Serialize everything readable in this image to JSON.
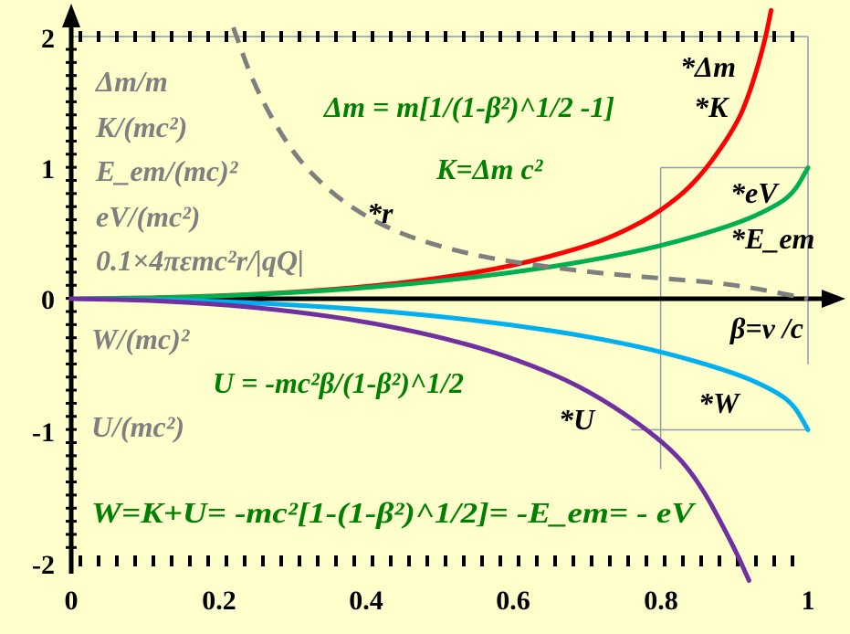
{
  "chart_data": {
    "type": "line",
    "xlim": [
      0,
      1
    ],
    "ylim": [
      -2,
      2
    ],
    "x_ticks": [
      "0",
      "0.2",
      "0.4",
      "0.6",
      "0.8",
      "1"
    ],
    "y_ticks": [
      "2",
      "1",
      "0",
      "-1",
      "-2"
    ],
    "x_axis_label": "β=v /c",
    "grid": false,
    "reference_lines": [
      {
        "type": "h",
        "y": 1,
        "x_from": 0.8,
        "x_to": 1
      },
      {
        "type": "v",
        "x": 0.8,
        "y_from": -1.3,
        "y_to": 1
      },
      {
        "type": "h",
        "y": -1,
        "x_from": 0.76,
        "x_to": 1
      },
      {
        "type": "v",
        "x": 1,
        "y_from": -0.5,
        "y_to": 2
      }
    ],
    "series": [
      {
        "id": "dm",
        "label": "*Δm / *K",
        "color": "#ff0000",
        "dashed": false,
        "x": [
          0,
          0.1,
          0.2,
          0.3,
          0.4,
          0.5,
          0.6,
          0.7,
          0.75,
          0.8,
          0.85,
          0.9,
          0.92,
          0.94,
          0.95
        ],
        "y": [
          0,
          0.005,
          0.021,
          0.048,
          0.091,
          0.155,
          0.25,
          0.4,
          0.512,
          0.667,
          0.898,
          1.294,
          1.552,
          1.931,
          2.2
        ]
      },
      {
        "id": "ev",
        "label": "*eV / *E_em",
        "color": "#00b050",
        "dashed": false,
        "x": [
          0,
          0.1,
          0.2,
          0.3,
          0.4,
          0.5,
          0.6,
          0.7,
          0.8,
          0.9,
          0.95,
          0.98,
          1
        ],
        "y": [
          0,
          0.005,
          0.02,
          0.046,
          0.083,
          0.134,
          0.2,
          0.286,
          0.4,
          0.564,
          0.688,
          0.801,
          1
        ]
      },
      {
        "id": "w",
        "label": "*W",
        "color": "#00b0f0",
        "dashed": false,
        "x": [
          0,
          0.1,
          0.2,
          0.3,
          0.4,
          0.5,
          0.6,
          0.7,
          0.8,
          0.9,
          0.95,
          0.98,
          1
        ],
        "y": [
          0,
          -0.005,
          -0.02,
          -0.046,
          -0.083,
          -0.134,
          -0.2,
          -0.286,
          -0.4,
          -0.564,
          -0.688,
          -0.801,
          -1
        ]
      },
      {
        "id": "u",
        "label": "*U",
        "color": "#7030a0",
        "dashed": false,
        "x": [
          0,
          0.1,
          0.2,
          0.3,
          0.4,
          0.5,
          0.6,
          0.7,
          0.8,
          0.85,
          0.9,
          0.92
        ],
        "y": [
          0,
          -0.01,
          -0.041,
          -0.094,
          -0.175,
          -0.289,
          -0.45,
          -0.686,
          -1.067,
          -1.37,
          -1.9,
          -2.15
        ]
      },
      {
        "id": "r",
        "label": "*r",
        "color": "#7f7f7f",
        "dashed": true,
        "x": [
          0.22,
          0.25,
          0.3,
          0.35,
          0.4,
          0.45,
          0.5,
          0.55,
          0.6,
          0.7,
          0.8,
          0.9,
          1
        ],
        "y": [
          2.07,
          1.6,
          1.11,
          0.82,
          0.625,
          0.49,
          0.4,
          0.33,
          0.28,
          0.204,
          0.156,
          0.111,
          0.0
        ]
      }
    ],
    "colors": {
      "background": "#ffffcc",
      "axis": "#000000",
      "left_labels": "#7f7f7f",
      "formulas": "#008000"
    },
    "left_labels": {
      "dm_m": "Δm/m",
      "k": "K/(mc²)",
      "eem": "E_em/(mc)²",
      "ev": "eV/(mc²)",
      "r_scaled": "0.1×4πεmc²r/|qQ|",
      "w": "W/(mc)²",
      "u": "U/(mc²)"
    },
    "formulas": {
      "dm": "Δm = m[1/(1-β²)^1/2 -1]",
      "k": "K=Δm c²",
      "u": "U = -mc²β/(1-β²)^1/2",
      "w": "W=K+U= -mc²[1-(1-β²)^1/2]= -E_em= - eV"
    },
    "curve_labels": {
      "dm": "*Δm",
      "k": "*K",
      "ev": "*eV",
      "eem": "*E_em",
      "w": "*W",
      "u": "*U",
      "r": "*r"
    }
  }
}
